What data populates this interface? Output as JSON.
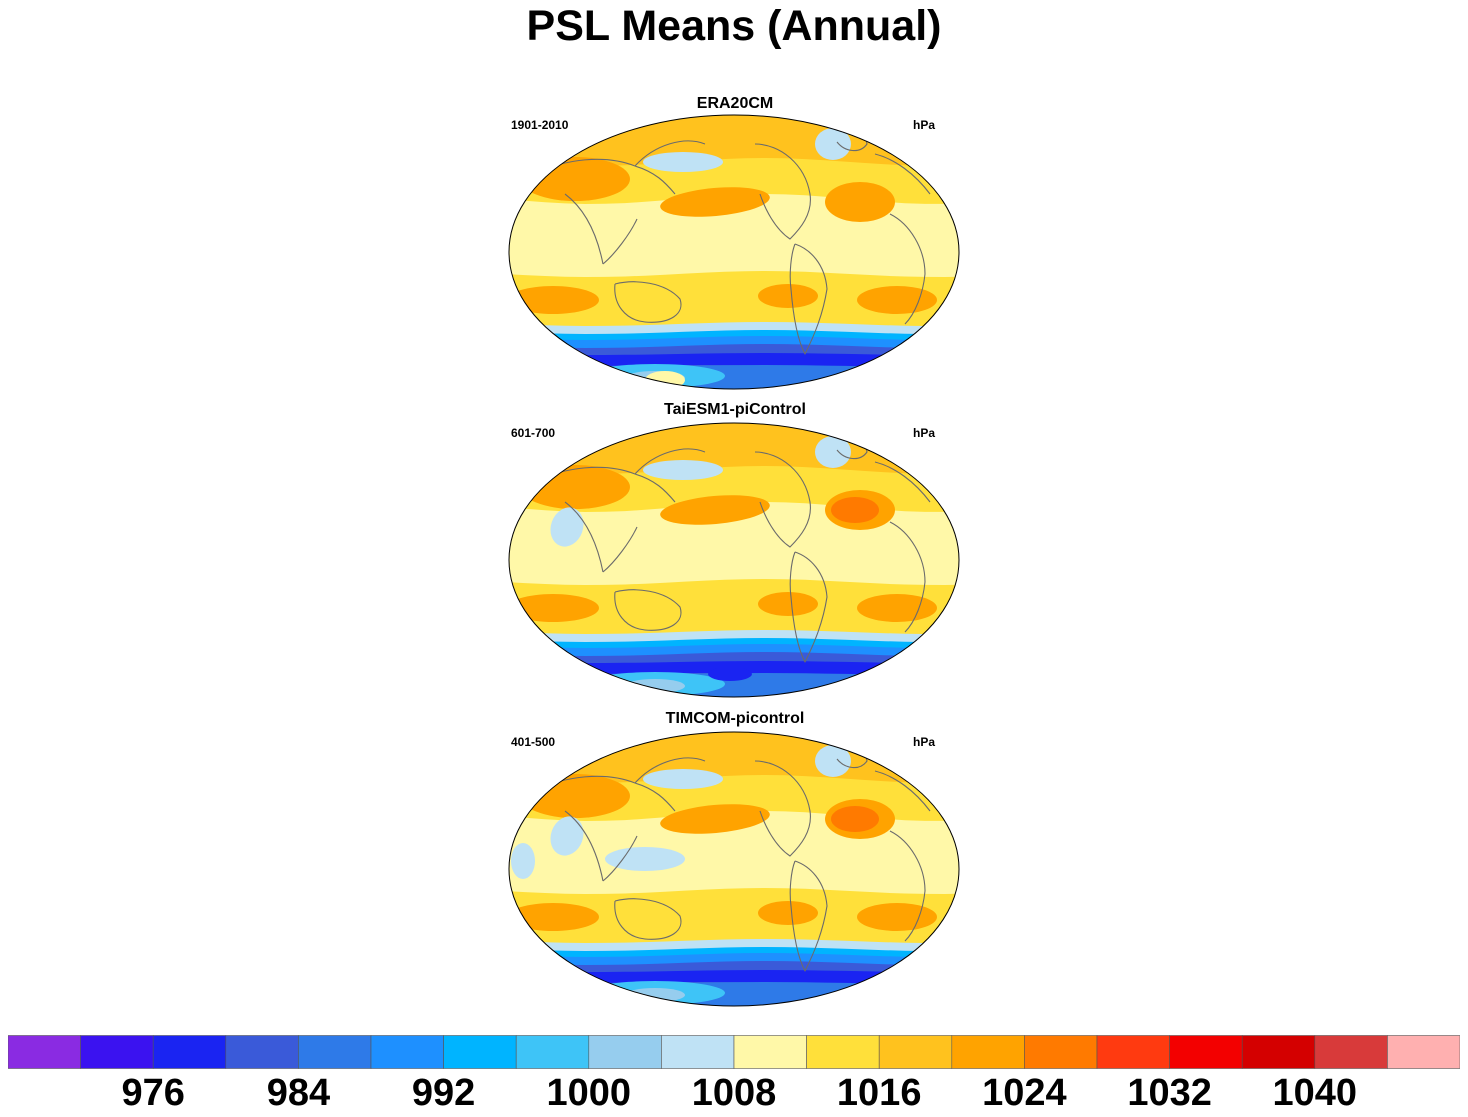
{
  "title": "PSL Means (Annual)",
  "panels": [
    {
      "title": "ERA20CM",
      "period": "1901-2010",
      "units": "hPa",
      "variant": 0
    },
    {
      "title": "TaiESM1-piControl",
      "period": "601-700",
      "units": "hPa",
      "variant": 1
    },
    {
      "title": "TIMCOM-picontrol",
      "period": "401-500",
      "units": "hPa",
      "variant": 2
    }
  ],
  "colorbar": {
    "colors": [
      "#8a2be2",
      "#3b12f0",
      "#1a24f2",
      "#3a5ad9",
      "#2e7ae8",
      "#1e90ff",
      "#00b4ff",
      "#3ec4f7",
      "#96cdee",
      "#bfe2f5",
      "#fff8a8",
      "#ffe03a",
      "#ffc21e",
      "#ffa300",
      "#ff7a00",
      "#ff3a10",
      "#f30000",
      "#d40000",
      "#d83a3a",
      "#ffb0b0"
    ],
    "labels": [
      "976",
      "984",
      "992",
      "1000",
      "1008",
      "1016",
      "1024",
      "1032",
      "1040"
    ]
  },
  "colors": {
    "land_outline": "#6b6b6b",
    "map_border": "#000000"
  }
}
